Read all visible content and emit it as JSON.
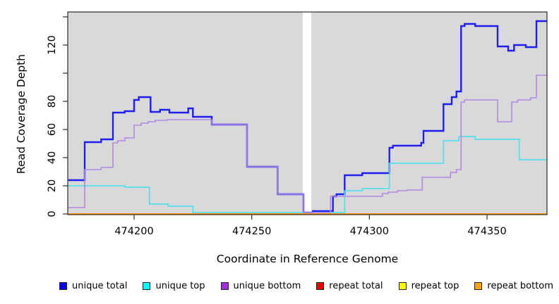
{
  "figure": {
    "xlabel": "Coordinate in Reference Genome",
    "ylabel": "Read Coverage Depth"
  },
  "legend": {
    "items": [
      {
        "label": "unique total",
        "color": "#0000EE"
      },
      {
        "label": "unique top",
        "color": "#00FFFF"
      },
      {
        "label": "unique bottom",
        "color": "#9B30D9"
      },
      {
        "label": "repeat total",
        "color": "#EE0000"
      },
      {
        "label": "repeat top",
        "color": "#FFFF00"
      },
      {
        "label": "repeat bottom",
        "color": "#FFA500"
      }
    ]
  },
  "chart_data": {
    "type": "line",
    "subtype": "step",
    "title": "",
    "xlabel": "Coordinate in Reference Genome",
    "ylabel": "Read Coverage Depth",
    "panel_color": "#d9d9d9",
    "grid": false,
    "legend_position": "bottom",
    "x_range": [
      474171.8,
      474375.5
    ],
    "y_range": [
      0,
      143.5
    ],
    "x_ticks": [
      {
        "value": 474200,
        "label": "474200"
      },
      {
        "value": 474250,
        "label": "474250"
      },
      {
        "value": 474300,
        "label": "474300"
      },
      {
        "value": 474350,
        "label": "474350"
      }
    ],
    "y_ticks": [
      {
        "value": 0,
        "label": "0"
      },
      {
        "value": 20,
        "label": "20"
      },
      {
        "value": 40,
        "label": "40"
      },
      {
        "value": 60,
        "label": "60"
      },
      {
        "value": 80,
        "label": "80"
      },
      {
        "value": 100,
        "label": ""
      },
      {
        "value": 120,
        "label": "120"
      },
      {
        "value": 140,
        "label": ""
      }
    ],
    "gap_region": [
      474271.7,
      474275.3
    ],
    "series": [
      {
        "name": "unique total",
        "color": "#1E1EF0",
        "line_width": 2.4,
        "points": [
          [
            474172,
            24
          ],
          [
            474179,
            51
          ],
          [
            474186,
            53
          ],
          [
            474191,
            72
          ],
          [
            474196,
            73
          ],
          [
            474200,
            81
          ],
          [
            474202,
            83
          ],
          [
            474207,
            72.5
          ],
          [
            474211,
            74
          ],
          [
            474215,
            72
          ],
          [
            474223,
            75
          ],
          [
            474225,
            69
          ],
          [
            474233,
            63.5
          ],
          [
            474248,
            33.5
          ],
          [
            474261,
            14
          ],
          [
            474272,
            1
          ],
          [
            474276,
            2
          ],
          [
            474284.5,
            12.5
          ],
          [
            474286,
            14
          ],
          [
            474289.5,
            27.5
          ],
          [
            474297,
            29
          ],
          [
            474308.5,
            47
          ],
          [
            474310,
            48.5
          ],
          [
            474322,
            50.5
          ],
          [
            474323,
            59
          ],
          [
            474331.5,
            78
          ],
          [
            474335,
            83
          ],
          [
            474337,
            87
          ],
          [
            474339,
            133.5
          ],
          [
            474340.5,
            135
          ],
          [
            474345,
            133.5
          ],
          [
            474354.5,
            119
          ],
          [
            474359,
            116
          ],
          [
            474361.5,
            120
          ],
          [
            474366.5,
            118.5
          ],
          [
            474371,
            137
          ]
        ]
      },
      {
        "name": "unique top",
        "color": "#45DFEE",
        "line_width": 1.6,
        "points": [
          [
            474172,
            20
          ],
          [
            474196,
            19
          ],
          [
            474206.5,
            7
          ],
          [
            474214.5,
            5.5
          ],
          [
            474225,
            1
          ],
          [
            474289.5,
            16.5
          ],
          [
            474297,
            18
          ],
          [
            474308.5,
            36
          ],
          [
            474331.5,
            52
          ],
          [
            474338,
            55
          ],
          [
            474345,
            53
          ],
          [
            474363.7,
            38.5
          ]
        ]
      },
      {
        "name": "unique bottom",
        "color": "#B288E0",
        "line_width": 1.6,
        "points": [
          [
            474172,
            4.5
          ],
          [
            474179,
            31.5
          ],
          [
            474186,
            33
          ],
          [
            474191,
            50.5
          ],
          [
            474193,
            52
          ],
          [
            474196,
            54
          ],
          [
            474200,
            63
          ],
          [
            474203,
            64.5
          ],
          [
            474206,
            65.5
          ],
          [
            474209,
            66.5
          ],
          [
            474214,
            67
          ],
          [
            474233,
            63.5
          ],
          [
            474248,
            33.5
          ],
          [
            474261,
            14
          ],
          [
            474272,
            1
          ],
          [
            474283.5,
            12.5
          ],
          [
            474305.5,
            14.5
          ],
          [
            474308,
            15.5
          ],
          [
            474312,
            16.5
          ],
          [
            474316,
            17
          ],
          [
            474322.5,
            26
          ],
          [
            474334.5,
            29.5
          ],
          [
            474337,
            31.5
          ],
          [
            474339,
            79.5
          ],
          [
            474340.5,
            81
          ],
          [
            474354.5,
            65.5
          ],
          [
            474360.5,
            79.5
          ],
          [
            474363,
            81
          ],
          [
            474368.5,
            82.5
          ],
          [
            474371,
            98.5
          ]
        ]
      },
      {
        "name": "repeat total",
        "color": "#EE0000",
        "line_width": 1.6,
        "points": [
          [
            474172,
            0
          ]
        ]
      },
      {
        "name": "repeat top",
        "color": "#FFFF00",
        "line_width": 1.6,
        "points": [
          [
            474172,
            0
          ]
        ]
      },
      {
        "name": "repeat bottom",
        "color": "#FF9814",
        "line_width": 2,
        "points": [
          [
            474172,
            0
          ]
        ]
      }
    ]
  }
}
